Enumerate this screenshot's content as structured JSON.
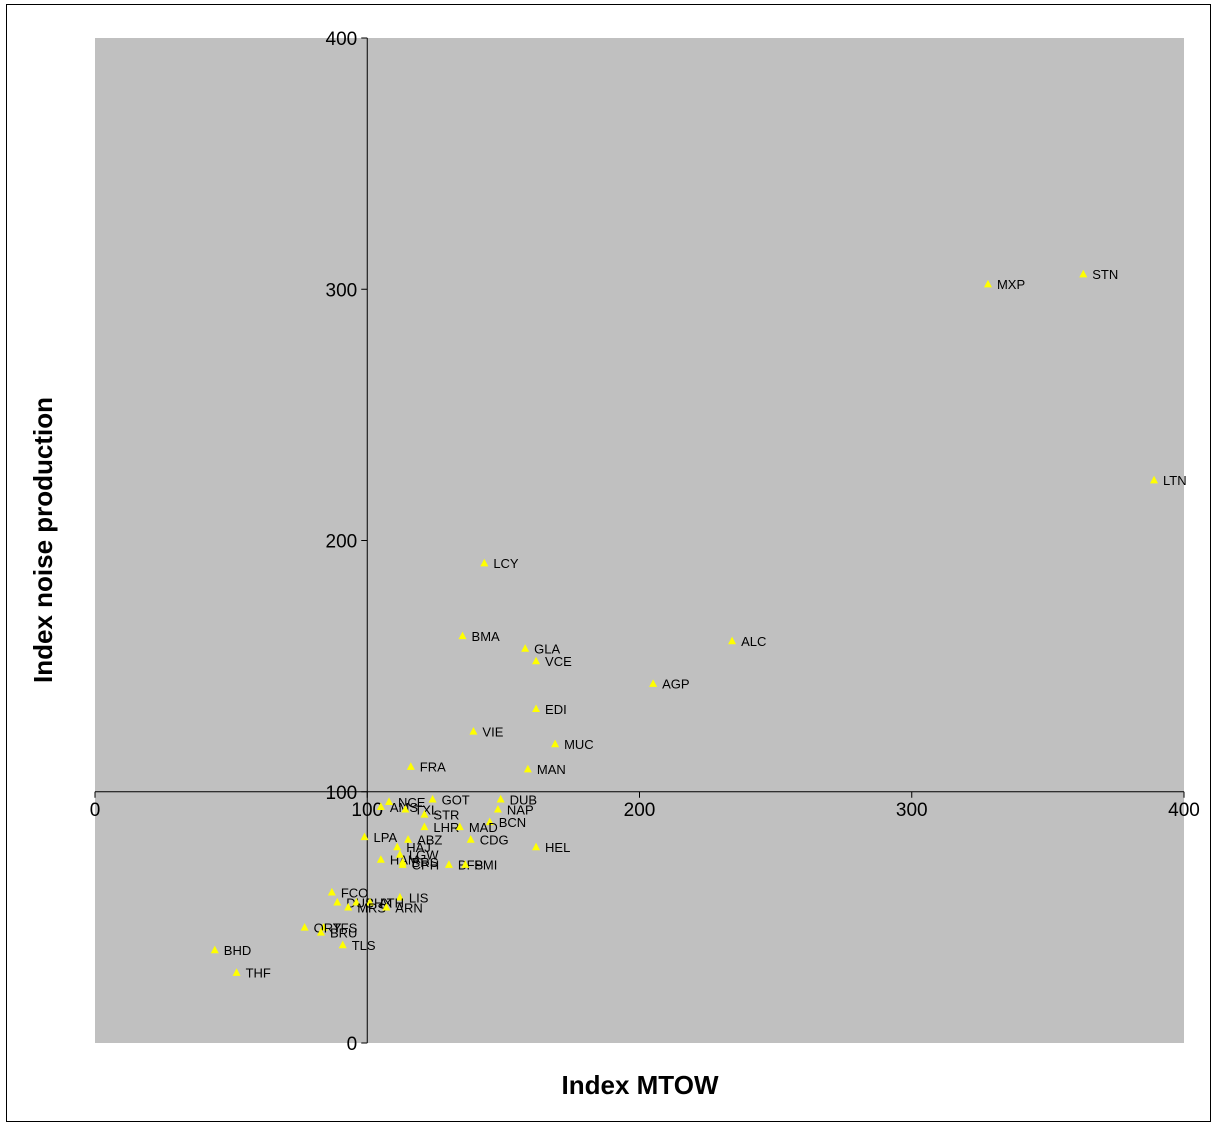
{
  "chart_data": {
    "type": "scatter",
    "xlabel": "Index MTOW",
    "ylabel": "Index noise production",
    "xlim": [
      0,
      400
    ],
    "ylim": [
      0,
      400
    ],
    "xticks": [
      "0",
      "100",
      "200",
      "300",
      "400"
    ],
    "yticks": [
      "0",
      "100",
      "200",
      "300",
      "400"
    ],
    "axis_crossing": {
      "x": 100,
      "y": 100
    },
    "grid": false,
    "legend": "none",
    "plot_background": "#c0c0c0",
    "marker": "triangle",
    "marker_color": "#ffff00",
    "points": [
      {
        "label": "STN",
        "x": 363,
        "y": 306
      },
      {
        "label": "MXP",
        "x": 328,
        "y": 302
      },
      {
        "label": "LTN",
        "x": 389,
        "y": 224
      },
      {
        "label": "LCY",
        "x": 143,
        "y": 191
      },
      {
        "label": "ALC",
        "x": 234,
        "y": 160
      },
      {
        "label": "BMA",
        "x": 135,
        "y": 162
      },
      {
        "label": "GLA",
        "x": 158,
        "y": 157
      },
      {
        "label": "VCE",
        "x": 162,
        "y": 152
      },
      {
        "label": "AGP",
        "x": 205,
        "y": 143
      },
      {
        "label": "EDI",
        "x": 162,
        "y": 133
      },
      {
        "label": "VIE",
        "x": 139,
        "y": 124
      },
      {
        "label": "MUC",
        "x": 169,
        "y": 119
      },
      {
        "label": "FRA",
        "x": 116,
        "y": 110
      },
      {
        "label": "MAN",
        "x": 159,
        "y": 109
      },
      {
        "label": "DUB",
        "x": 149,
        "y": 97
      },
      {
        "label": "GOT",
        "x": 124,
        "y": 97
      },
      {
        "label": "NCE",
        "x": 108,
        "y": 96
      },
      {
        "label": "AMS",
        "x": 105,
        "y": 94
      },
      {
        "label": "NAP",
        "x": 148,
        "y": 93
      },
      {
        "label": "TXL",
        "x": 114,
        "y": 93
      },
      {
        "label": "STR",
        "x": 121,
        "y": 91
      },
      {
        "label": "BCN",
        "x": 145,
        "y": 88
      },
      {
        "label": "LHR",
        "x": 121,
        "y": 86
      },
      {
        "label": "MAD",
        "x": 134,
        "y": 86
      },
      {
        "label": "LPA",
        "x": 99,
        "y": 82
      },
      {
        "label": "ABZ",
        "x": 115,
        "y": 81
      },
      {
        "label": "CDG",
        "x": 138,
        "y": 81
      },
      {
        "label": "HAJ",
        "x": 111,
        "y": 78
      },
      {
        "label": "HEL",
        "x": 162,
        "y": 78
      },
      {
        "label": "HAM",
        "x": 105,
        "y": 73
      },
      {
        "label": "LGW",
        "x": 112,
        "y": 75
      },
      {
        "label": "BRS",
        "x": 113,
        "y": 72
      },
      {
        "label": "CPH",
        "x": 113,
        "y": 71
      },
      {
        "label": "BFS",
        "x": 130,
        "y": 71
      },
      {
        "label": "PMI",
        "x": 136,
        "y": 71
      },
      {
        "label": "FCO",
        "x": 87,
        "y": 60
      },
      {
        "label": "LIS",
        "x": 112,
        "y": 58
      },
      {
        "label": "DUS",
        "x": 89,
        "y": 56
      },
      {
        "label": "BHX",
        "x": 96,
        "y": 56
      },
      {
        "label": "ATH",
        "x": 101,
        "y": 56
      },
      {
        "label": "MRS",
        "x": 93,
        "y": 54
      },
      {
        "label": "ARN",
        "x": 107,
        "y": 54
      },
      {
        "label": "TFS",
        "x": 84,
        "y": 46
      },
      {
        "label": "ORY",
        "x": 77,
        "y": 46
      },
      {
        "label": "BRU",
        "x": 83,
        "y": 44
      },
      {
        "label": "TLS",
        "x": 91,
        "y": 39
      },
      {
        "label": "BHD",
        "x": 44,
        "y": 37
      },
      {
        "label": "THF",
        "x": 52,
        "y": 28
      }
    ]
  }
}
